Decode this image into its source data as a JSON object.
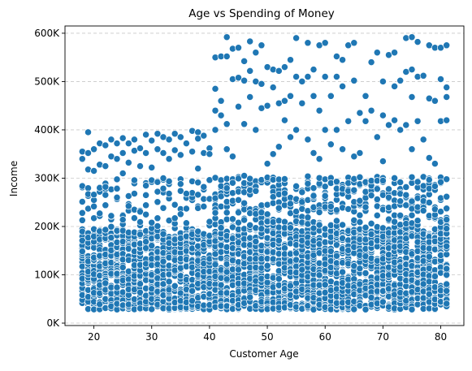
{
  "chart_data": {
    "type": "scatter",
    "title": "Age vs Spending of Money",
    "xlabel": "Customer Age",
    "ylabel": "Income",
    "xlim": [
      15,
      84
    ],
    "ylim": [
      -5000,
      615000
    ],
    "xticks": [
      20,
      30,
      40,
      50,
      60,
      70,
      80
    ],
    "xtick_labels": [
      "20",
      "30",
      "40",
      "50",
      "60",
      "70",
      "80"
    ],
    "yticks": [
      0,
      100000,
      200000,
      300000,
      400000,
      500000,
      600000
    ],
    "ytick_labels": [
      "0K",
      "100K",
      "200K",
      "300K",
      "400K",
      "500K",
      "600K"
    ],
    "grid": "y-dashed",
    "marker_color": "#1f77b4",
    "marker_edge": "#ffffff",
    "ages": [
      18,
      19,
      20,
      21,
      22,
      23,
      24,
      25,
      26,
      27,
      28,
      29,
      30,
      31,
      32,
      33,
      34,
      35,
      36,
      37,
      38,
      39,
      40,
      41,
      42,
      43,
      44,
      45,
      46,
      47,
      48,
      49,
      50,
      51,
      52,
      53,
      54,
      55,
      56,
      57,
      58,
      59,
      60,
      61,
      62,
      63,
      64,
      65,
      66,
      67,
      68,
      69,
      70,
      71,
      72,
      73,
      74,
      75,
      76,
      77,
      78,
      79,
      80,
      81
    ],
    "dense_income_range": [
      28000,
      195000
    ],
    "mid_income_range_under_41": [
      195000,
      300000
    ],
    "mid_income_range_41_plus": [
      195000,
      305000
    ],
    "high_income_band_under_41": [
      300000,
      398000
    ],
    "high_income_band_41_plus": [
      305000,
      595000
    ],
    "points": [
      [
        18,
        228000
      ],
      [
        18,
        213000
      ],
      [
        18,
        355000
      ],
      [
        18,
        340000
      ],
      [
        19,
        395000
      ],
      [
        19,
        352000
      ],
      [
        19,
        318000
      ],
      [
        20,
        360000
      ],
      [
        20,
        315000
      ],
      [
        21,
        372000
      ],
      [
        21,
        328000
      ],
      [
        21,
        280000
      ],
      [
        22,
        368000
      ],
      [
        22,
        325000
      ],
      [
        22,
        282000
      ],
      [
        23,
        380000
      ],
      [
        23,
        345000
      ],
      [
        23,
        222000
      ],
      [
        24,
        372000
      ],
      [
        24,
        340000
      ],
      [
        24,
        260000
      ],
      [
        25,
        383000
      ],
      [
        25,
        352000
      ],
      [
        25,
        310000
      ],
      [
        26,
        372000
      ],
      [
        26,
        332000
      ],
      [
        27,
        380000
      ],
      [
        27,
        357000
      ],
      [
        27,
        268000
      ],
      [
        28,
        362000
      ],
      [
        28,
        325000
      ],
      [
        29,
        390000
      ],
      [
        29,
        352000
      ],
      [
        29,
        244000
      ],
      [
        30,
        378000
      ],
      [
        30,
        322000
      ],
      [
        31,
        392000
      ],
      [
        31,
        360000
      ],
      [
        31,
        272000
      ],
      [
        32,
        385000
      ],
      [
        32,
        352000
      ],
      [
        32,
        300000
      ],
      [
        33,
        380000
      ],
      [
        33,
        340000
      ],
      [
        33,
        268000
      ],
      [
        34,
        392000
      ],
      [
        34,
        358000
      ],
      [
        34,
        245000
      ],
      [
        35,
        385000
      ],
      [
        35,
        348000
      ],
      [
        35,
        288000
      ],
      [
        36,
        372000
      ],
      [
        36,
        268000
      ],
      [
        37,
        398000
      ],
      [
        37,
        355000
      ],
      [
        38,
        395000
      ],
      [
        38,
        382000
      ],
      [
        38,
        320000
      ],
      [
        39,
        388000
      ],
      [
        39,
        352000
      ],
      [
        39,
        282000
      ],
      [
        40,
        362000
      ],
      [
        40,
        350000
      ],
      [
        41,
        550000
      ],
      [
        41,
        485000
      ],
      [
        41,
        440000
      ],
      [
        41,
        400000
      ],
      [
        42,
        552000
      ],
      [
        42,
        460000
      ],
      [
        42,
        430000
      ],
      [
        43,
        592000
      ],
      [
        43,
        552000
      ],
      [
        43,
        412000
      ],
      [
        43,
        360000
      ],
      [
        44,
        568000
      ],
      [
        44,
        505000
      ],
      [
        44,
        345000
      ],
      [
        45,
        570000
      ],
      [
        45,
        508000
      ],
      [
        45,
        448000
      ],
      [
        46,
        542000
      ],
      [
        46,
        502000
      ],
      [
        46,
        412000
      ],
      [
        47,
        583000
      ],
      [
        47,
        522000
      ],
      [
        47,
        468000
      ],
      [
        48,
        560000
      ],
      [
        48,
        500000
      ],
      [
        48,
        400000
      ],
      [
        49,
        575000
      ],
      [
        49,
        495000
      ],
      [
        49,
        445000
      ],
      [
        50,
        530000
      ],
      [
        50,
        450000
      ],
      [
        50,
        330000
      ],
      [
        51,
        525000
      ],
      [
        51,
        488000
      ],
      [
        51,
        350000
      ],
      [
        52,
        522000
      ],
      [
        52,
        455000
      ],
      [
        52,
        365000
      ],
      [
        53,
        530000
      ],
      [
        53,
        460000
      ],
      [
        53,
        420000
      ],
      [
        54,
        545000
      ],
      [
        54,
        470000
      ],
      [
        54,
        385000
      ],
      [
        55,
        590000
      ],
      [
        55,
        510000
      ],
      [
        55,
        400000
      ],
      [
        56,
        500000
      ],
      [
        56,
        455000
      ],
      [
        57,
        580000
      ],
      [
        57,
        510000
      ],
      [
        57,
        380000
      ],
      [
        58,
        525000
      ],
      [
        58,
        470000
      ],
      [
        58,
        352000
      ],
      [
        59,
        575000
      ],
      [
        59,
        440000
      ],
      [
        59,
        340000
      ],
      [
        60,
        580000
      ],
      [
        60,
        510000
      ],
      [
        60,
        400000
      ],
      [
        61,
        470000
      ],
      [
        61,
        370000
      ],
      [
        62,
        552000
      ],
      [
        62,
        510000
      ],
      [
        62,
        400000
      ],
      [
        63,
        545000
      ],
      [
        63,
        490000
      ],
      [
        63,
        360000
      ],
      [
        64,
        575000
      ],
      [
        64,
        418000
      ],
      [
        65,
        580000
      ],
      [
        65,
        502000
      ],
      [
        65,
        345000
      ],
      [
        66,
        435000
      ],
      [
        66,
        352000
      ],
      [
        67,
        470000
      ],
      [
        67,
        418000
      ],
      [
        68,
        540000
      ],
      [
        68,
        440000
      ],
      [
        69,
        560000
      ],
      [
        69,
        385000
      ],
      [
        70,
        500000
      ],
      [
        70,
        430000
      ],
      [
        70,
        335000
      ],
      [
        71,
        555000
      ],
      [
        71,
        410000
      ],
      [
        72,
        560000
      ],
      [
        72,
        490000
      ],
      [
        72,
        420000
      ],
      [
        73,
        502000
      ],
      [
        73,
        400000
      ],
      [
        74,
        590000
      ],
      [
        74,
        520000
      ],
      [
        74,
        410000
      ],
      [
        75,
        592000
      ],
      [
        75,
        525000
      ],
      [
        75,
        468000
      ],
      [
        75,
        360000
      ],
      [
        76,
        582000
      ],
      [
        76,
        510000
      ],
      [
        76,
        418000
      ],
      [
        77,
        512000
      ],
      [
        77,
        380000
      ],
      [
        78,
        575000
      ],
      [
        78,
        465000
      ],
      [
        78,
        342000
      ],
      [
        79,
        570000
      ],
      [
        79,
        460000
      ],
      [
        79,
        330000
      ],
      [
        80,
        570000
      ],
      [
        80,
        505000
      ],
      [
        80,
        418000
      ],
      [
        81,
        575000
      ],
      [
        81,
        488000
      ],
      [
        81,
        468000
      ],
      [
        81,
        420000
      ]
    ]
  }
}
